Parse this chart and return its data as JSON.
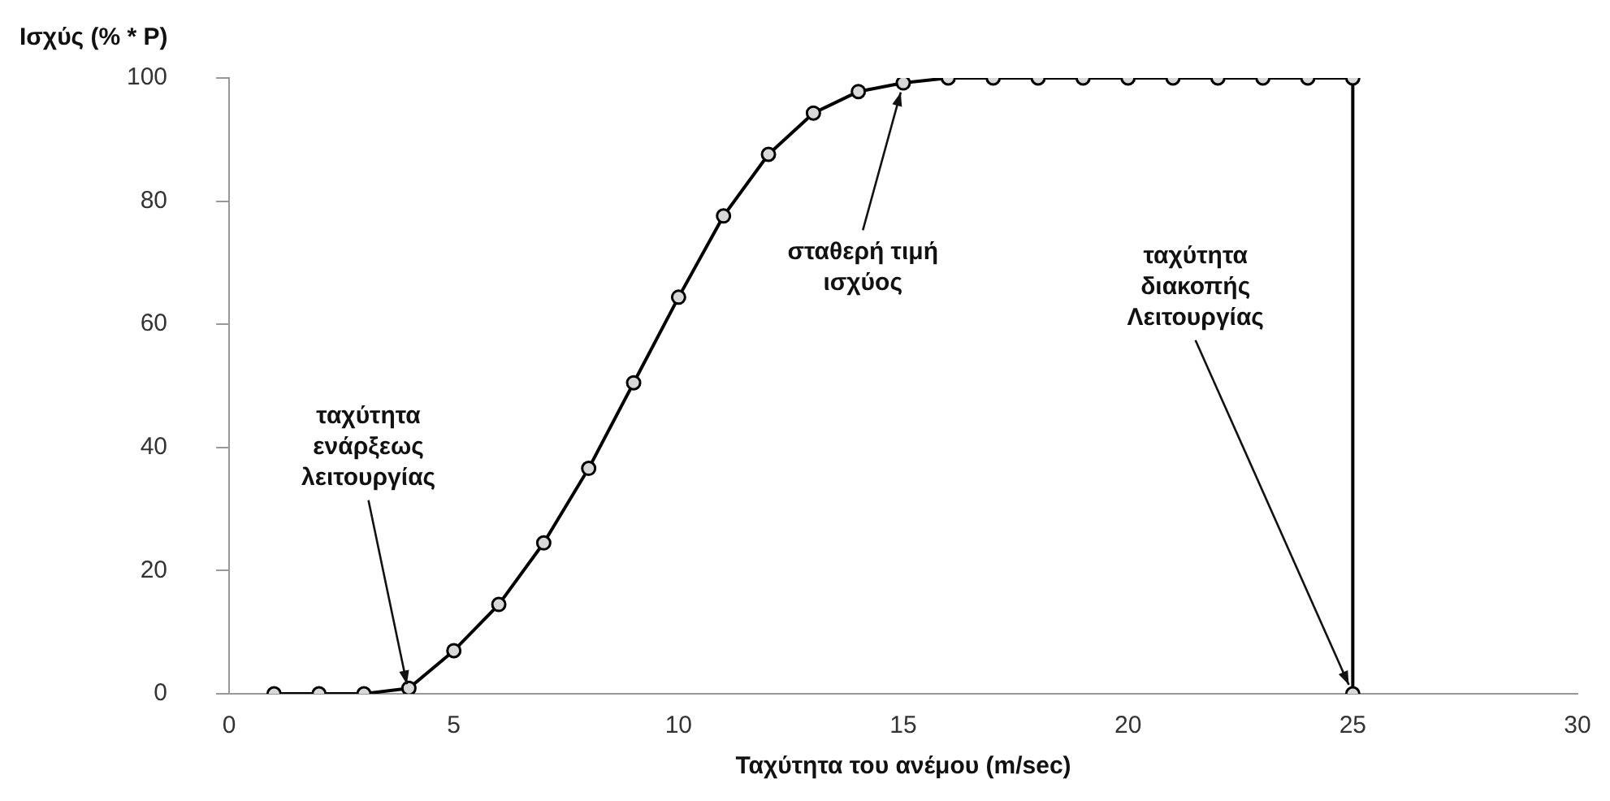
{
  "chart_data": {
    "type": "line",
    "ylabel": "Ισχύς (% * P)",
    "xlabel": "Ταχύτητα του ανέμου (m/sec)",
    "x": [
      1,
      2,
      3,
      4,
      5,
      6,
      7,
      8,
      9,
      10,
      11,
      12,
      13,
      14,
      15,
      16,
      17,
      18,
      19,
      20,
      21,
      22,
      23,
      24,
      25,
      25
    ],
    "series": [
      {
        "color": "#000000",
        "values": [
          0,
          0,
          0,
          0.9,
          7,
          14.5,
          24.5,
          36.6,
          50.5,
          64.4,
          77.6,
          87.6,
          94.3,
          97.8,
          99.2,
          100,
          100,
          100,
          100,
          100,
          100,
          100,
          100,
          100,
          100,
          0
        ]
      }
    ],
    "xlim": [
      0,
      30
    ],
    "xticks": [
      0,
      5,
      10,
      15,
      20,
      25,
      30
    ],
    "ylim": [
      0,
      100
    ],
    "yticks": [
      0,
      20,
      40,
      60,
      80,
      100
    ],
    "grid": false,
    "legend": false,
    "marker": "circle",
    "line_style": "solid",
    "annotations": [
      {
        "text": "ταχύτητα\nενάρξεως\nλειτουργίας",
        "x": 4,
        "y": 0
      },
      {
        "text": "σταθερή τιμή\nισχύος",
        "x": 15,
        "y": 99.2
      },
      {
        "text": "ταχύτητα\nδιακοπής\nΛειτουργίας",
        "x": 25,
        "y": 0
      }
    ]
  }
}
